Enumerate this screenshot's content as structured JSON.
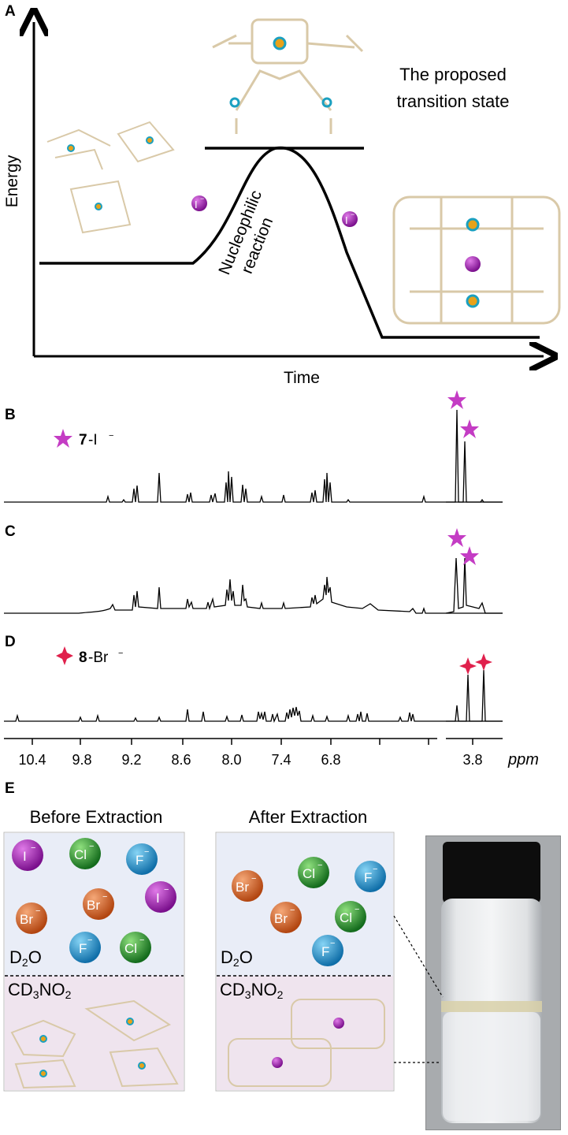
{
  "panels": {
    "a": "A",
    "b": "B",
    "c": "C",
    "d": "D",
    "e": "E"
  },
  "panel_a": {
    "y_axis": "Energy",
    "x_axis": "Time",
    "ts_label_line1": "The proposed",
    "ts_label_line2": "transition state",
    "reaction_line1": "Nucleophilic",
    "reaction_line2": "reaction",
    "ion_label": "I"
  },
  "spectra": {
    "b_compound": "7",
    "b_ion": "-I",
    "d_compound": "8",
    "d_ion": "-Br",
    "axis_ticks": [
      "10.4",
      "9.8",
      "9.2",
      "8.6",
      "8.0",
      "7.4",
      "6.8",
      "3.8"
    ],
    "axis_unit": "ppm"
  },
  "panel_e": {
    "before_title": "Before Extraction",
    "after_title": "After Extraction",
    "aqueous": "D2O",
    "organic": "CD3NO2",
    "ions_before": [
      {
        "t": "I",
        "c": "#8a1f9a"
      },
      {
        "t": "Cl",
        "c": "#1f8a2a"
      },
      {
        "t": "F",
        "c": "#1d86c4"
      },
      {
        "t": "Br",
        "c": "#d2602a"
      },
      {
        "t": "Br",
        "c": "#d2602a"
      },
      {
        "t": "I",
        "c": "#8a1f9a"
      },
      {
        "t": "F",
        "c": "#1d86c4"
      },
      {
        "t": "Cl",
        "c": "#1f8a2a"
      }
    ],
    "ions_after": [
      {
        "t": "Br",
        "c": "#d2602a"
      },
      {
        "t": "Cl",
        "c": "#1f8a2a"
      },
      {
        "t": "F",
        "c": "#1d86c4"
      },
      {
        "t": "Br",
        "c": "#d2602a"
      },
      {
        "t": "Cl",
        "c": "#1f8a2a"
      },
      {
        "t": "F",
        "c": "#1d86c4"
      }
    ]
  },
  "colors": {
    "iodide": "#8a1f9a",
    "star_magenta": "#c43cc4",
    "star_red": "#e0204c",
    "aqueous_bg": "#e9edf7",
    "organic_bg": "#efe4ee"
  }
}
